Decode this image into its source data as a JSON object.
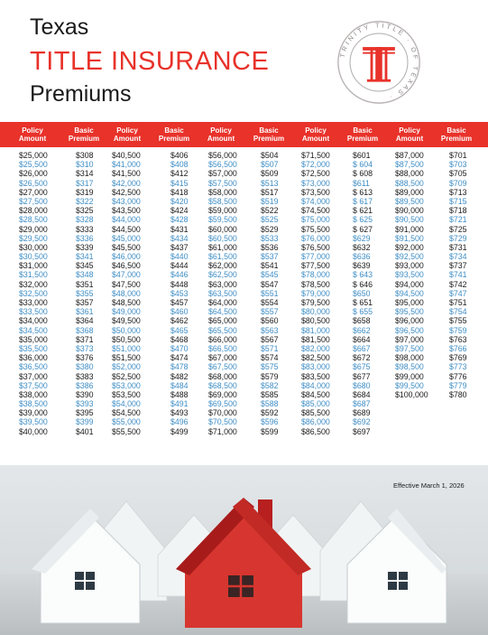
{
  "title": {
    "line1": "Texas",
    "line2": "TITLE INSURANCE",
    "line3": "Premiums"
  },
  "seal": {
    "ring_text": "TRINITY TITLE OF TEXAS",
    "letter": "T"
  },
  "headers": [
    {
      "a": "Policy",
      "b": "Amount"
    },
    {
      "a": "Basic",
      "b": "Premium"
    },
    {
      "a": "Policy",
      "b": "Amount"
    },
    {
      "a": "Basic",
      "b": "Premium"
    },
    {
      "a": "Policy",
      "b": "Amount"
    },
    {
      "a": "Basic",
      "b": "Premium"
    },
    {
      "a": "Policy",
      "b": "Amount"
    },
    {
      "a": "Basic",
      "b": "Premium"
    },
    {
      "a": "Policy",
      "b": "Amount"
    },
    {
      "a": "Basic",
      "b": "Premium"
    }
  ],
  "columns": [
    [
      "$25,000",
      "$25,500",
      "$26,000",
      "$26,500",
      "$27,000",
      "$27,500",
      "$28,000",
      "$28,500",
      "$29,000",
      "$29,500",
      "$30,000",
      "$30,500",
      "$31,000",
      "$31,500",
      "$32,000",
      "$32,500",
      "$33,000",
      "$33,500",
      "$34,000",
      "$34,500",
      "$35,000",
      "$35,500",
      "$36,000",
      "$36,500",
      "$37,000",
      "$37,500",
      "$38,000",
      "$38,500",
      "$39,000",
      "$39,500",
      "$40,000"
    ],
    [
      "$308",
      "$310",
      "$314",
      "$317",
      "$319",
      "$322",
      "$325",
      "$328",
      "$333",
      "$336",
      "$339",
      "$341",
      "$345",
      "$348",
      "$351",
      "$355",
      "$357",
      "$361",
      "$364",
      "$368",
      "$371",
      "$373",
      "$376",
      "$380",
      "$383",
      "$386",
      "$390",
      "$393",
      "$395",
      "$399",
      "$401"
    ],
    [
      "$40,500",
      "$41,000",
      "$41,500",
      "$42,000",
      "$42,500",
      "$43,000",
      "$43,500",
      "$44,000",
      "$44,500",
      "$45,000",
      "$45,500",
      "$46,000",
      "$46,500",
      "$47,000",
      "$47,500",
      "$48,000",
      "$48,500",
      "$49,000",
      "$49,500",
      "$50,000",
      "$50,500",
      "$51,000",
      "$51,500",
      "$52,000",
      "$52,500",
      "$53,000",
      "$53,500",
      "$54,000",
      "$54,500",
      "$55,000",
      "$55,500"
    ],
    [
      "$406",
      "$408",
      "$412",
      "$415",
      "$418",
      "$420",
      "$424",
      "$428",
      "$431",
      "$434",
      "$437",
      "$440",
      "$444",
      "$446",
      "$448",
      "$453",
      "$457",
      "$460",
      "$462",
      "$465",
      "$468",
      "$470",
      "$474",
      "$478",
      "$482",
      "$484",
      "$488",
      "$491",
      "$493",
      "$496",
      "$499"
    ],
    [
      "$56,000",
      "$56,500",
      "$57,000",
      "$57,500",
      "$58,000",
      "$58,500",
      "$59,000",
      "$59,500",
      "$60,000",
      "$60,500",
      "$61,000",
      "$61,500",
      "$62,000",
      "$62,500",
      "$63,000",
      "$63,500",
      "$64,000",
      "$64,500",
      "$65,000",
      "$65,500",
      "$66,000",
      "$66,500",
      "$67,000",
      "$67,500",
      "$68,000",
      "$68,500",
      "$69,000",
      "$69,500",
      "$70,000",
      "$70,500",
      "$71,000"
    ],
    [
      "$504",
      "$507",
      "$509",
      "$513",
      "$517",
      "$519",
      "$522",
      "$525",
      "$529",
      "$533",
      "$536",
      "$537",
      "$541",
      "$545",
      "$547",
      "$551",
      "$554",
      "$557",
      "$560",
      "$563",
      "$567",
      "$571",
      "$574",
      "$575",
      "$579",
      "$582",
      "$585",
      "$588",
      "$592",
      "$596",
      "$599"
    ],
    [
      "$71,500",
      "$72,000",
      "$72,500",
      "$73,000",
      "$73,500",
      "$74,000",
      "$74,500",
      "$75,000",
      "$75,500",
      "$76,000",
      "$76,500",
      "$77,000",
      "$77,500",
      "$78,000",
      "$78,500",
      "$79,000",
      "$79,500",
      "$80,000",
      "$80,500",
      "$81,000",
      "$81,500",
      "$82,000",
      "$82,500",
      "$83,000",
      "$83,500",
      "$84,000",
      "$84,500",
      "$85,000",
      "$85,500",
      "$86,000",
      "$86,500"
    ],
    [
      "$601",
      "$ 604",
      "$ 608",
      "$611",
      "$ 613",
      "$ 617",
      "$ 621",
      "$ 625",
      "$ 627",
      "$629",
      "$632",
      "$636",
      "$639",
      "$ 643",
      "$ 646",
      "$650",
      "$ 651",
      "$ 655",
      "$658",
      "$662",
      "$664",
      "$667",
      "$672",
      "$675",
      "$677",
      "$680",
      "$684",
      "$687",
      "$689",
      "$692",
      "$697"
    ],
    [
      "$87,000",
      "$87,500",
      "$88,000",
      "$88,500",
      "$89,000",
      "$89,500",
      "$90,000",
      "$90,500",
      "$91,000",
      "$91,500",
      "$92,000",
      "$92,500",
      "$93,000",
      "$93,500",
      "$94,000",
      "$94,500",
      "$95,000",
      "$95,500",
      "$96,000",
      "$96,500",
      "$97,000",
      "$97,500",
      "$98,000",
      "$98,500",
      "$99,000",
      "$99,500",
      "$100,000"
    ],
    [
      "$701",
      "$703",
      "$705",
      "$709",
      "$713",
      "$715",
      "$718",
      "$721",
      "$725",
      "$729",
      "$731",
      "$734",
      "$737",
      "$741",
      "$742",
      "$747",
      "$751",
      "$754",
      "$755",
      "$759",
      "$763",
      "$766",
      "$769",
      "$773",
      "$776",
      "$779",
      "$780"
    ]
  ],
  "colors": {
    "red": "#e8322a",
    "blue": "#3f8ec6",
    "dark": "#1a1a1a"
  },
  "effective": "Effective March 1, 2026",
  "photo": {
    "subject": "row of white house models with one red house in the center"
  }
}
